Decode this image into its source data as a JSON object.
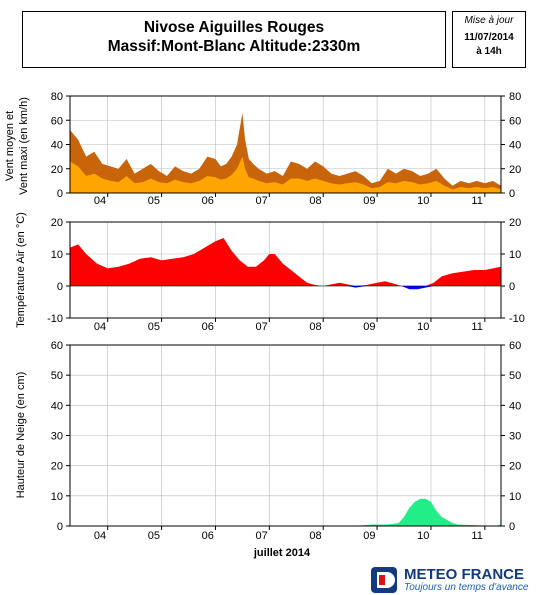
{
  "header": {
    "title_line1": "Nivose Aiguilles Rouges",
    "title_line2": "Massif:Mont-Blanc Altitude:2330m"
  },
  "update": {
    "label": "Mise à jour",
    "date": "11/07/2014",
    "time": "à 14h"
  },
  "x_axis": {
    "tick_labels": [
      "04",
      "05",
      "06",
      "07",
      "08",
      "09",
      "10",
      "11"
    ],
    "xlabel": "juillet 2014"
  },
  "colors": {
    "wind_max": "#c8650a",
    "wind_mean": "#ffa500",
    "temp_positive": "#ff0000",
    "temp_negative": "#0000ff",
    "snow": "#22ee88",
    "grid": "#bbbbbb"
  },
  "chart_data": [
    {
      "type": "area",
      "ylabel": "Vent moyen et Vent maxi (en km/h)",
      "ylim": [
        0,
        80
      ],
      "yticks": [
        0,
        20,
        40,
        60,
        80
      ],
      "grid": true,
      "x": [
        3.3,
        3.45,
        3.6,
        3.75,
        3.9,
        4.05,
        4.2,
        4.35,
        4.5,
        4.65,
        4.8,
        4.95,
        5.1,
        5.25,
        5.4,
        5.55,
        5.7,
        5.85,
        6.0,
        6.1,
        6.2,
        6.3,
        6.4,
        6.5,
        6.55,
        6.62,
        6.7,
        6.8,
        6.95,
        7.1,
        7.25,
        7.4,
        7.55,
        7.7,
        7.85,
        8.0,
        8.15,
        8.3,
        8.45,
        8.6,
        8.75,
        8.9,
        9.05,
        9.2,
        9.35,
        9.5,
        9.65,
        9.8,
        9.95,
        10.1,
        10.25,
        10.4,
        10.55,
        10.7,
        10.85,
        11.0,
        11.15,
        11.3
      ],
      "series": [
        {
          "values": [
            52,
            44,
            30,
            34,
            24,
            22,
            20,
            28,
            16,
            20,
            24,
            18,
            14,
            22,
            18,
            16,
            20,
            30,
            28,
            22,
            24,
            30,
            40,
            66,
            44,
            28,
            24,
            20,
            16,
            18,
            14,
            26,
            24,
            20,
            26,
            22,
            16,
            14,
            16,
            18,
            14,
            8,
            10,
            20,
            16,
            20,
            18,
            14,
            16,
            20,
            12,
            6,
            10,
            8,
            10,
            8,
            10,
            6
          ]
        },
        {
          "values": [
            26,
            22,
            14,
            16,
            12,
            10,
            9,
            14,
            8,
            9,
            12,
            9,
            8,
            11,
            9,
            8,
            10,
            14,
            13,
            11,
            12,
            15,
            20,
            30,
            20,
            13,
            12,
            10,
            8,
            9,
            7,
            12,
            12,
            10,
            12,
            10,
            8,
            7,
            8,
            9,
            7,
            4,
            5,
            9,
            8,
            10,
            9,
            7,
            8,
            10,
            6,
            3,
            5,
            4,
            5,
            4,
            5,
            3
          ]
        }
      ]
    },
    {
      "type": "area",
      "ylabel": "Température Air (en °C)",
      "ylim": [
        -10,
        20
      ],
      "yticks": [
        -10,
        0,
        10,
        20
      ],
      "grid": true,
      "x": [
        3.3,
        3.45,
        3.6,
        3.8,
        4.0,
        4.2,
        4.4,
        4.6,
        4.8,
        5.0,
        5.2,
        5.4,
        5.6,
        5.8,
        6.0,
        6.15,
        6.3,
        6.45,
        6.6,
        6.75,
        6.9,
        7.0,
        7.1,
        7.25,
        7.4,
        7.55,
        7.7,
        7.85,
        8.0,
        8.15,
        8.3,
        8.45,
        8.6,
        8.8,
        9.0,
        9.15,
        9.3,
        9.45,
        9.6,
        9.75,
        9.9,
        10.05,
        10.2,
        10.4,
        10.6,
        10.8,
        11.0,
        11.15,
        11.3
      ],
      "values": [
        12,
        13,
        10,
        7,
        5.5,
        6,
        7,
        8.5,
        9,
        8,
        8.5,
        9,
        10,
        12,
        14,
        15,
        11,
        8,
        6,
        6,
        8,
        10,
        10,
        7,
        5,
        3,
        1,
        0.3,
        0,
        0.5,
        1,
        0.5,
        -0.5,
        0.3,
        1,
        1.5,
        0.8,
        0,
        -1,
        -1,
        -0.5,
        1,
        3,
        4,
        4.5,
        5,
        5,
        5.5,
        6
      ]
    },
    {
      "type": "area",
      "ylabel": "Hauteur de Neige (en cm)",
      "ylim": [
        0,
        60
      ],
      "yticks": [
        0,
        10,
        20,
        30,
        40,
        50,
        60
      ],
      "grid": true,
      "x": [
        3.3,
        8.6,
        8.9,
        9.2,
        9.4,
        9.5,
        9.6,
        9.7,
        9.8,
        9.9,
        10.0,
        10.1,
        10.2,
        10.3,
        10.4,
        10.5,
        11.2,
        11.3
      ],
      "values": [
        0,
        0,
        0.5,
        0.5,
        1,
        3,
        6,
        8,
        9,
        9,
        8,
        5,
        3,
        2,
        1,
        0.5,
        0,
        0.5
      ]
    }
  ],
  "logo": {
    "name": "METEO FRANCE",
    "slogan": "Toujours un temps d'avance"
  }
}
